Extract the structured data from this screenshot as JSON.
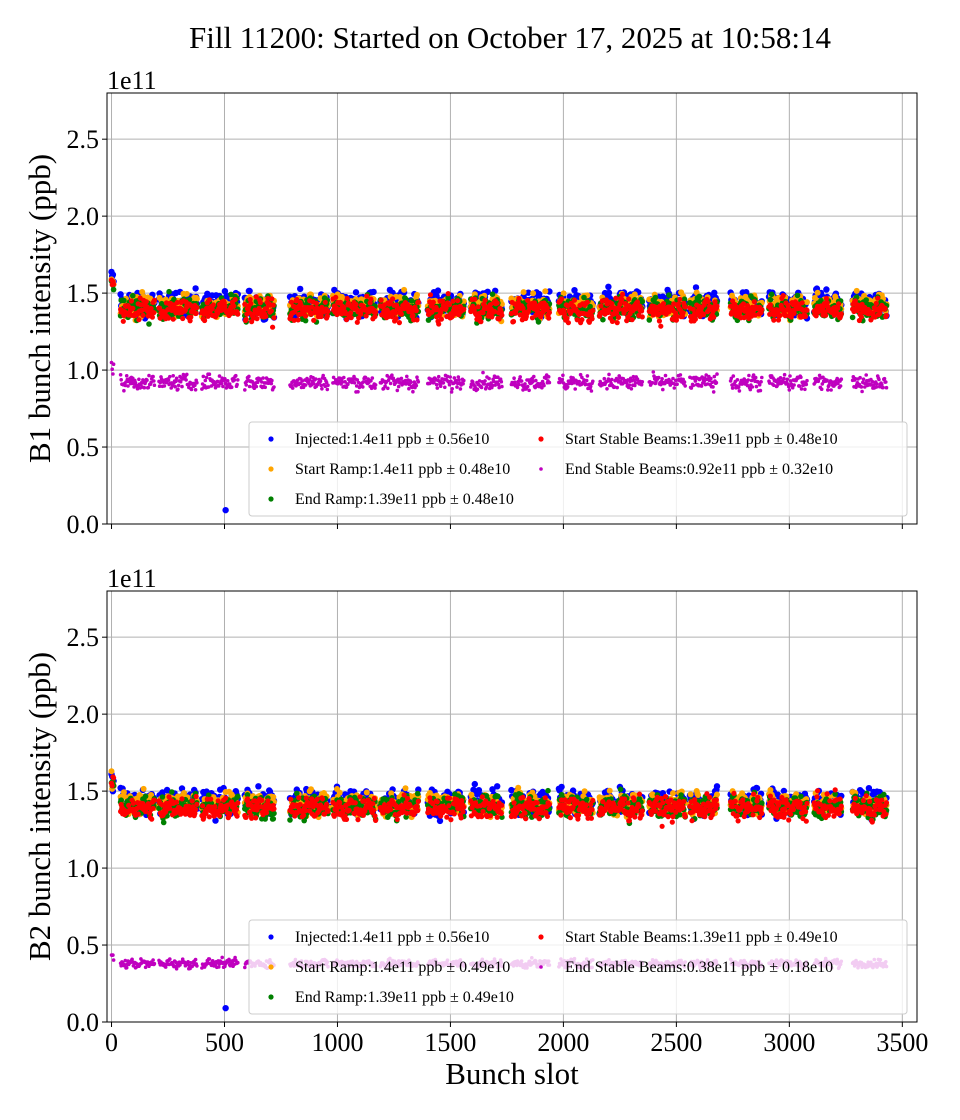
{
  "chart_data": [
    {
      "type": "scatter",
      "title": "Fill 11200: Started on October 17, 2025 at 10:58:14",
      "xlabel": "",
      "ylabel": "B1 bunch intensity (ppb)",
      "offset_label": "1e11",
      "xlim": [
        -20,
        3565
      ],
      "ylim": [
        0,
        2.8
      ],
      "xticks": [
        "0",
        "500",
        "1000",
        "1500",
        "2000",
        "2500",
        "3000",
        "3500"
      ],
      "yticks": [
        "0.0",
        "0.5",
        "1.0",
        "1.5",
        "2.0",
        "2.5"
      ],
      "grid": true,
      "legend_position": "lower-right",
      "trains": [
        [
          0,
          10
        ],
        [
          40,
          190
        ],
        [
          210,
          380
        ],
        [
          400,
          560
        ],
        [
          590,
          720
        ],
        [
          790,
          960
        ],
        [
          980,
          1170
        ],
        [
          1190,
          1360
        ],
        [
          1400,
          1560
        ],
        [
          1590,
          1730
        ],
        [
          1770,
          1940
        ],
        [
          1980,
          2130
        ],
        [
          2160,
          2350
        ],
        [
          2380,
          2540
        ],
        [
          2560,
          2680
        ],
        [
          2740,
          2880
        ],
        [
          2910,
          3080
        ],
        [
          3110,
          3230
        ],
        [
          3280,
          3430
        ]
      ],
      "outliers": [
        {
          "series": "Injected",
          "x": 505,
          "y": 0.09
        }
      ],
      "series": [
        {
          "name": "Injected:1.4e11 ppb ± 0.56e10",
          "color": "#0000ff",
          "mean": 1.4,
          "std": 0.056
        },
        {
          "name": "Start Ramp:1.4e11 ppb ± 0.48e10",
          "color": "#ffa500",
          "mean": 1.4,
          "std": 0.048
        },
        {
          "name": "End Ramp:1.39e11 ppb ± 0.48e10",
          "color": "#008000",
          "mean": 1.39,
          "std": 0.048
        },
        {
          "name": "Start Stable Beams:1.39e11 ppb ± 0.48e10",
          "color": "#ff0000",
          "mean": 1.39,
          "std": 0.048
        },
        {
          "name": "End Stable Beams:0.92e11 ppb ± 0.32e10",
          "color": "#bf00bf",
          "mean": 0.92,
          "std": 0.032
        }
      ]
    },
    {
      "type": "scatter",
      "xlabel": "Bunch slot",
      "ylabel": "B2 bunch intensity (ppb)",
      "offset_label": "1e11",
      "xlim": [
        -20,
        3565
      ],
      "ylim": [
        0,
        2.8
      ],
      "xticks": [
        "0",
        "500",
        "1000",
        "1500",
        "2000",
        "2500",
        "3000",
        "3500"
      ],
      "yticks": [
        "0.0",
        "0.5",
        "1.0",
        "1.5",
        "2.0",
        "2.5"
      ],
      "grid": true,
      "legend_position": "lower-right",
      "trains": [
        [
          0,
          10
        ],
        [
          40,
          190
        ],
        [
          210,
          380
        ],
        [
          400,
          560
        ],
        [
          590,
          720
        ],
        [
          790,
          960
        ],
        [
          980,
          1170
        ],
        [
          1190,
          1360
        ],
        [
          1400,
          1560
        ],
        [
          1590,
          1730
        ],
        [
          1770,
          1940
        ],
        [
          1980,
          2130
        ],
        [
          2160,
          2350
        ],
        [
          2380,
          2540
        ],
        [
          2560,
          2680
        ],
        [
          2740,
          2880
        ],
        [
          2910,
          3080
        ],
        [
          3110,
          3230
        ],
        [
          3280,
          3430
        ]
      ],
      "outliers": [
        {
          "series": "Injected",
          "x": 505,
          "y": 0.09
        }
      ],
      "series": [
        {
          "name": "Injected:1.4e11 ppb ± 0.56e10",
          "color": "#0000ff",
          "mean": 1.4,
          "std": 0.056
        },
        {
          "name": "Start Ramp:1.4e11 ppb ± 0.49e10",
          "color": "#ffa500",
          "mean": 1.4,
          "std": 0.049
        },
        {
          "name": "End Ramp:1.39e11 ppb ± 0.49e10",
          "color": "#008000",
          "mean": 1.39,
          "std": 0.049
        },
        {
          "name": "Start Stable Beams:1.39e11 ppb ± 0.49e10",
          "color": "#ff0000",
          "mean": 1.39,
          "std": 0.049
        },
        {
          "name": "End Stable Beams:0.38e11 ppb ± 0.18e10",
          "color": "#bf00bf",
          "mean": 0.38,
          "std": 0.018
        }
      ]
    }
  ]
}
